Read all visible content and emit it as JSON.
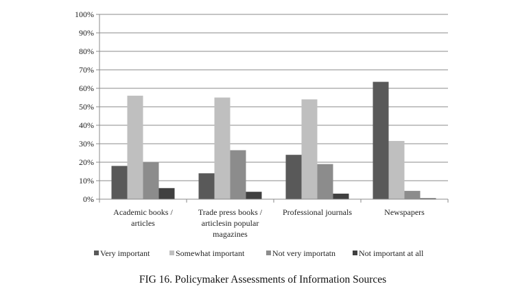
{
  "chart_data": {
    "type": "bar",
    "title": "",
    "xlabel": "",
    "ylabel": "",
    "ylim": [
      0,
      100
    ],
    "yticks": [
      "0%",
      "10%",
      "20%",
      "30%",
      "40%",
      "50%",
      "60%",
      "70%",
      "80%",
      "90%",
      "100%"
    ],
    "grid": true,
    "legend_position": "bottom",
    "categories": [
      [
        "Academic books /",
        "articles"
      ],
      [
        "Trade press books /",
        "articlesin popular",
        "magazines"
      ],
      [
        "Professional journals"
      ],
      [
        "Newspapers"
      ]
    ],
    "series": [
      {
        "name": "Very important",
        "color": "#595959",
        "values": [
          18,
          14,
          24,
          63.5
        ]
      },
      {
        "name": "Somewhat important",
        "color": "#bfbfbf",
        "values": [
          56,
          55,
          54,
          31.5
        ]
      },
      {
        "name": "Not very importatn",
        "color": "#8c8c8c",
        "values": [
          20,
          26.5,
          19,
          4.5
        ]
      },
      {
        "name": "Not important at all",
        "color": "#404040",
        "values": [
          6,
          4,
          3,
          0.5
        ]
      }
    ]
  },
  "caption": "FIG 16. Policymaker Assessments of Information Sources"
}
